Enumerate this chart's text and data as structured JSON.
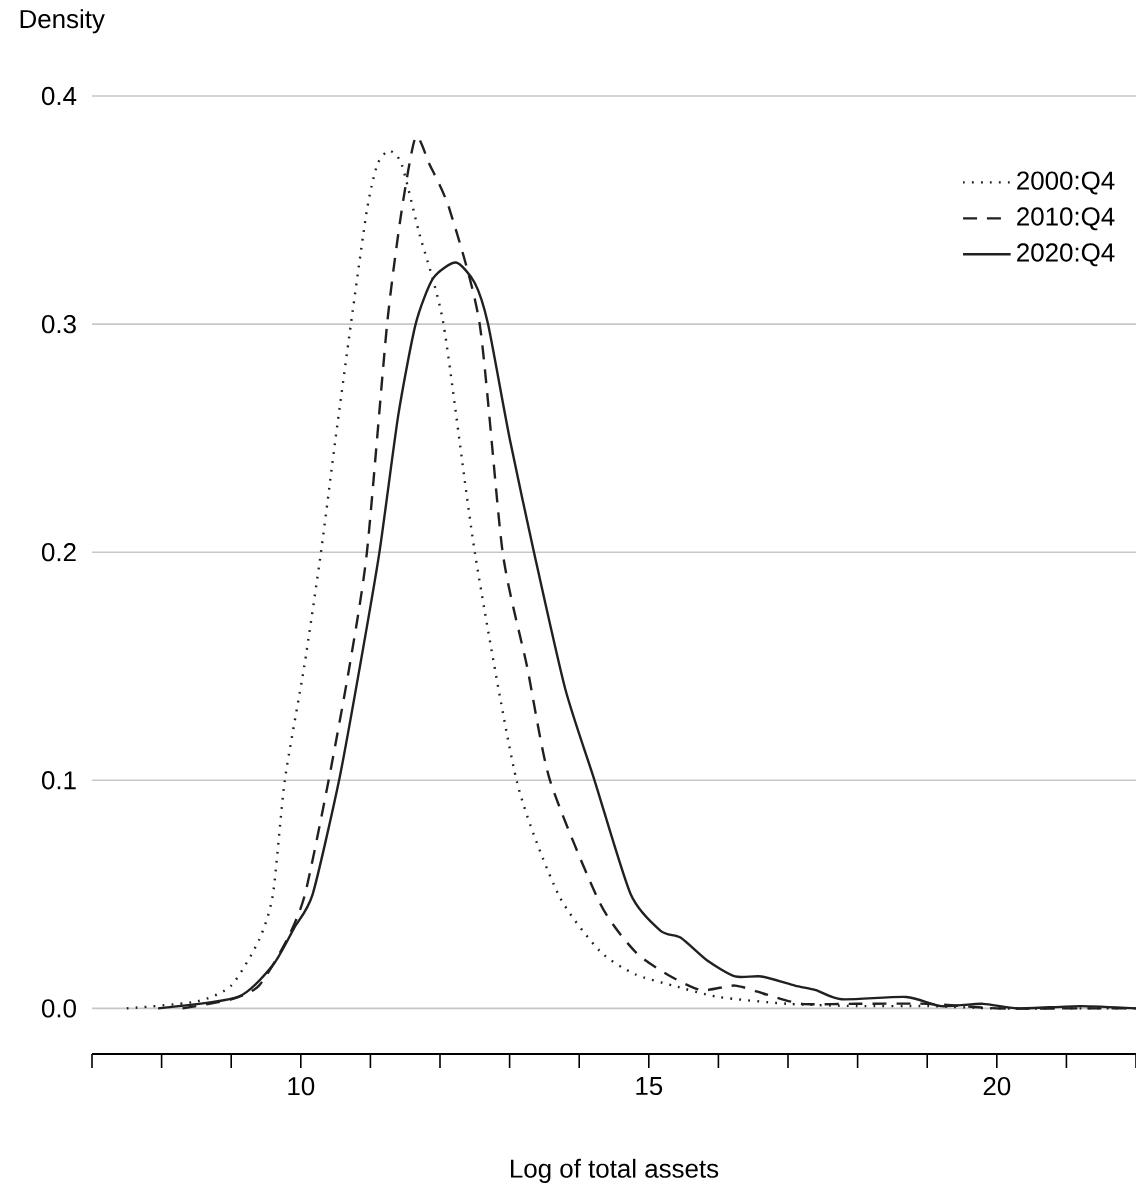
{
  "chart_data": {
    "type": "line",
    "xlabel": "Log of total assets",
    "ylabel": "Density",
    "xlim": [
      7,
      22
    ],
    "ylim": [
      -0.02,
      0.4
    ],
    "xticks": [
      {
        "value": 7,
        "label": null
      },
      {
        "value": 8,
        "label": null
      },
      {
        "value": 9,
        "label": null
      },
      10,
      {
        "value": 11,
        "label": null
      },
      {
        "value": 12,
        "label": null
      },
      {
        "value": 13,
        "label": null
      },
      {
        "value": 14,
        "label": null
      },
      15,
      {
        "value": 16,
        "label": null
      },
      {
        "value": 17,
        "label": null
      },
      {
        "value": 18,
        "label": null
      },
      {
        "value": 19,
        "label": null
      },
      20,
      {
        "value": 21,
        "label": null
      },
      {
        "value": 22,
        "label": null
      }
    ],
    "yticks": [
      {
        "value": 0,
        "label": "0.0"
      },
      0.1,
      0.2,
      0.3,
      0.4
    ],
    "grid": "y",
    "legend": "top right",
    "marker": "none",
    "series": [
      {
        "name": "2000:Q4",
        "color": "#231f20",
        "line_style": "dotted",
        "x": [
          7.5,
          8.5,
          9.0,
          9.4,
          9.6,
          9.77,
          10.05,
          10.29,
          10.5,
          10.72,
          10.95,
          11.1,
          11.27,
          11.45,
          11.7,
          12.05,
          12.5,
          13.1,
          13.7,
          14.3,
          14.8,
          15.35,
          16.0,
          17.0,
          18.0,
          19.0,
          20.0,
          21.0,
          22.0
        ],
        "values": [
          0.0,
          0.003,
          0.01,
          0.03,
          0.05,
          0.1,
          0.15,
          0.2,
          0.25,
          0.3,
          0.35,
          0.37,
          0.376,
          0.37,
          0.34,
          0.3,
          0.2,
          0.1,
          0.05,
          0.025,
          0.015,
          0.01,
          0.005,
          0.002,
          0.001,
          0.001,
          0.0,
          0.0,
          0.0
        ]
      },
      {
        "name": "2010:Q4",
        "color": "#231f20",
        "line_style": "dashed",
        "x": [
          8.3,
          9.0,
          9.4,
          9.8,
          10.06,
          10.4,
          10.7,
          10.95,
          11.24,
          11.45,
          11.65,
          11.85,
          12.14,
          12.57,
          12.9,
          13.25,
          13.58,
          14.3,
          14.8,
          15.26,
          15.75,
          16.24,
          16.7,
          17.2,
          18.0,
          19.0,
          20.0,
          21.0,
          22.0
        ],
        "values": [
          0.0,
          0.004,
          0.01,
          0.03,
          0.05,
          0.1,
          0.15,
          0.2,
          0.3,
          0.35,
          0.382,
          0.37,
          0.35,
          0.3,
          0.2,
          0.15,
          0.1,
          0.046,
          0.025,
          0.015,
          0.008,
          0.01,
          0.006,
          0.002,
          0.002,
          0.002,
          0.0,
          0.0,
          0.0
        ]
      },
      {
        "name": "2020:Q4",
        "color": "#231f20",
        "line_style": "solid",
        "x": [
          7.95,
          9.1,
          9.6,
          9.9,
          10.17,
          10.55,
          10.85,
          11.13,
          11.4,
          11.65,
          11.9,
          12.23,
          12.5,
          12.69,
          13.0,
          13.35,
          13.8,
          14.22,
          14.74,
          15.17,
          15.46,
          15.84,
          16.24,
          16.62,
          17.1,
          17.4,
          17.77,
          18.7,
          19.2,
          19.8,
          20.3,
          21.2,
          22.0
        ],
        "values": [
          0.0,
          0.005,
          0.019,
          0.035,
          0.05,
          0.1,
          0.15,
          0.2,
          0.26,
          0.3,
          0.32,
          0.327,
          0.318,
          0.3,
          0.25,
          0.2,
          0.14,
          0.1,
          0.05,
          0.034,
          0.031,
          0.021,
          0.014,
          0.014,
          0.01,
          0.008,
          0.004,
          0.005,
          0.001,
          0.002,
          0.0,
          0.001,
          0.0
        ]
      }
    ]
  }
}
